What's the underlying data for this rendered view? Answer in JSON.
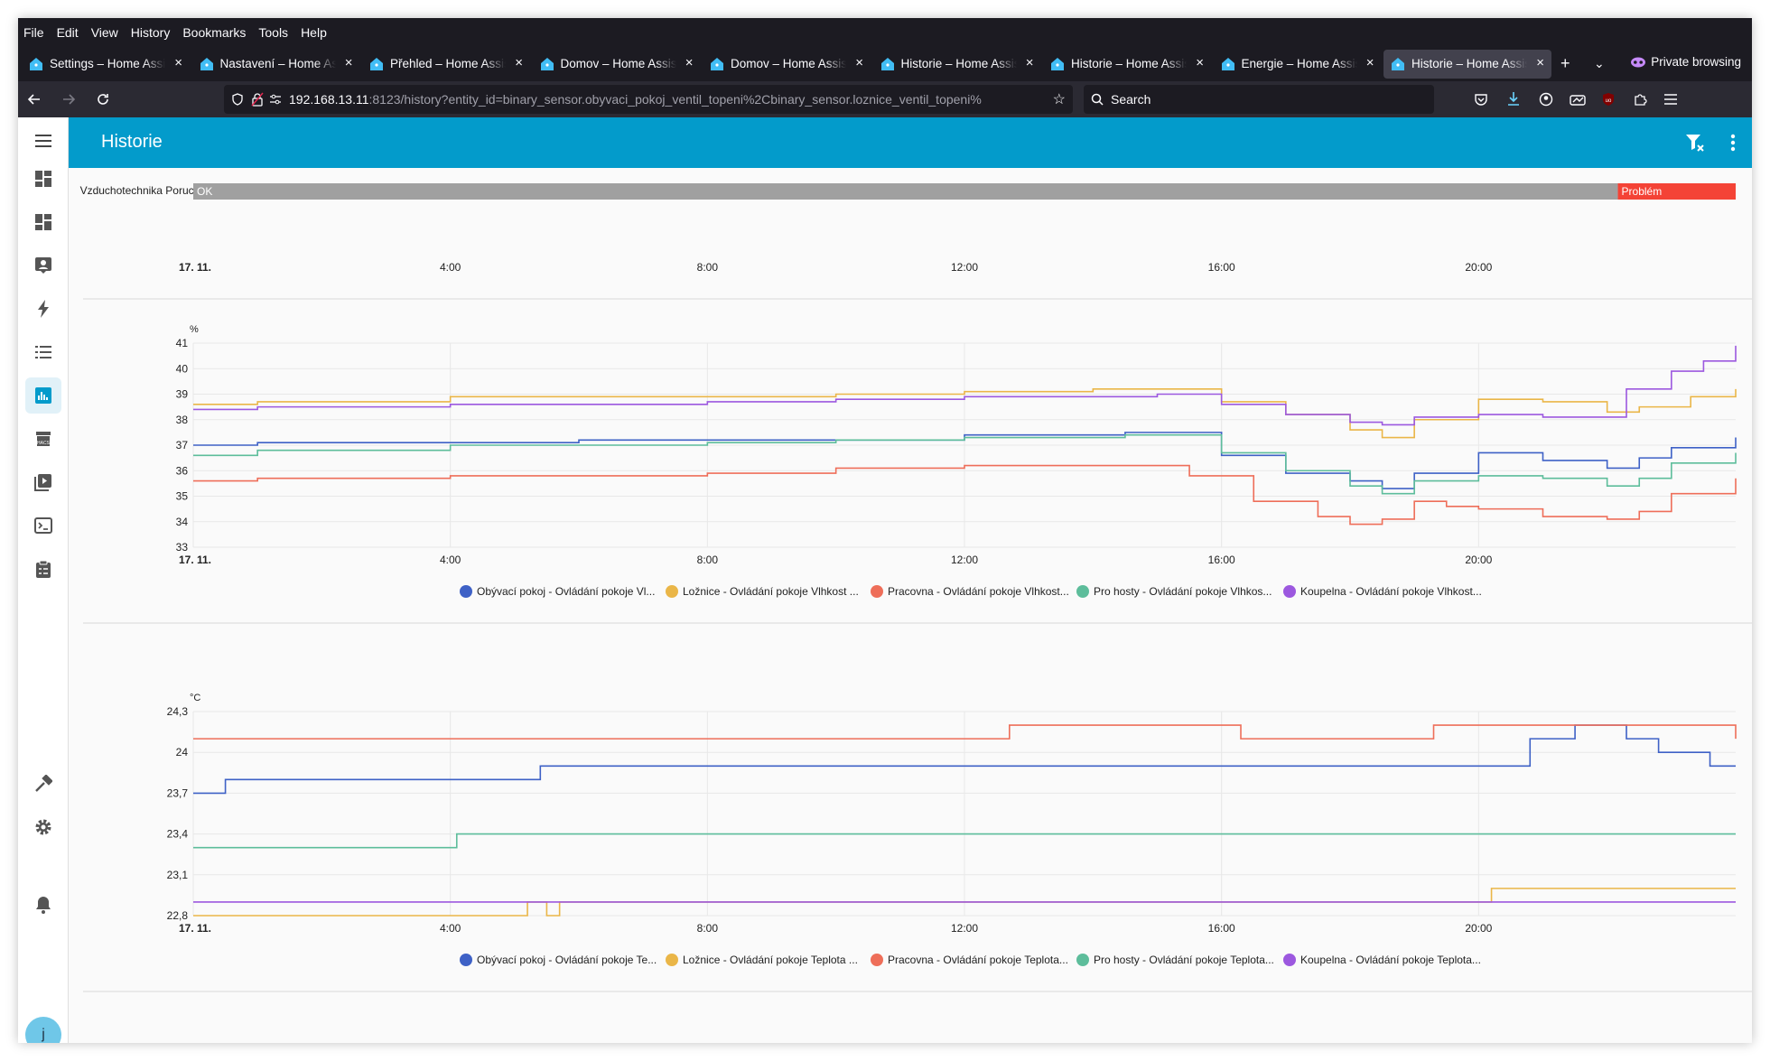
{
  "menubar": [
    "File",
    "Edit",
    "View",
    "History",
    "Bookmarks",
    "Tools",
    "Help"
  ],
  "tabs": [
    {
      "label": "Settings – Home Assistant",
      "active": false
    },
    {
      "label": "Nastavení – Home Assistant",
      "active": false
    },
    {
      "label": "Přehled – Home Assistant",
      "active": false
    },
    {
      "label": "Domov – Home Assistant",
      "active": false
    },
    {
      "label": "Domov – Home Assistant",
      "active": false
    },
    {
      "label": "Historie – Home Assistant",
      "active": false
    },
    {
      "label": "Historie – Home Assistant",
      "active": false
    },
    {
      "label": "Energie – Home Assistant",
      "active": false
    },
    {
      "label": "Historie – Home Assistant",
      "active": true
    }
  ],
  "private_label": "Private browsing",
  "url": {
    "host": "192.168.13.11",
    "rest": ":8123/history?entity_id=binary_sensor.obyvaci_pokoj_ventil_topeni%2Cbinary_sensor.loznice_ventil_topeni%"
  },
  "search_placeholder": "Search",
  "header": {
    "title": "Historie"
  },
  "avatar_letter": "j",
  "colors": {
    "blue": "#3e61c6",
    "yellow": "#eab648",
    "red": "#ee6e59",
    "green": "#5dbd9b",
    "purple": "#9c58df",
    "header": "#039bcb",
    "timeline_ok": "#a0a0a0",
    "timeline_problem": "#f44336"
  },
  "timeline": {
    "entity": "Vzduchotechnika Porucha",
    "segments": [
      {
        "label": "OK",
        "from": "00:00",
        "to": "22:10"
      },
      {
        "label": "Problém",
        "from": "22:10",
        "to": "24:00"
      }
    ]
  },
  "time_ticks": [
    {
      "t": 0,
      "label": "17. 11."
    },
    {
      "t": 4,
      "label": "4:00"
    },
    {
      "t": 8,
      "label": "8:00"
    },
    {
      "t": 12,
      "label": "12:00"
    },
    {
      "t": 16,
      "label": "16:00"
    },
    {
      "t": 20,
      "label": "20:00"
    }
  ],
  "chart_data": [
    {
      "type": "line",
      "unit": "%",
      "ylim": [
        33,
        41
      ],
      "yticks": [
        "33",
        "34",
        "35",
        "36",
        "37",
        "38",
        "39",
        "40",
        "41"
      ],
      "series": [
        {
          "name": "Obývací pokoj - Ovládání pokoje Vl...",
          "color": "blue",
          "points": [
            [
              0,
              37
            ],
            [
              1,
              37.1
            ],
            [
              3,
              37.1
            ],
            [
              6,
              37.2
            ],
            [
              10,
              37.2
            ],
            [
              12,
              37.4
            ],
            [
              14.5,
              37.5
            ],
            [
              16,
              36.6
            ],
            [
              17,
              35.9
            ],
            [
              18,
              35.6
            ],
            [
              18.5,
              35.3
            ],
            [
              19,
              35.9
            ],
            [
              20,
              36.7
            ],
            [
              21,
              36.4
            ],
            [
              22,
              36.1
            ],
            [
              22.5,
              36.5
            ],
            [
              23,
              36.9
            ],
            [
              24,
              37.3
            ]
          ]
        },
        {
          "name": "Ložnice - Ovládání pokoje Vlhkost ...",
          "color": "yellow",
          "points": [
            [
              0,
              38.6
            ],
            [
              1,
              38.7
            ],
            [
              4,
              38.9
            ],
            [
              8,
              38.9
            ],
            [
              10,
              39
            ],
            [
              12,
              39.1
            ],
            [
              14,
              39.2
            ],
            [
              15,
              39.2
            ],
            [
              16,
              38.7
            ],
            [
              17,
              38.2
            ],
            [
              18,
              37.6
            ],
            [
              18.5,
              37.3
            ],
            [
              19,
              38
            ],
            [
              20,
              38.8
            ],
            [
              21,
              38.7
            ],
            [
              22,
              38.3
            ],
            [
              22.5,
              38.5
            ],
            [
              23.3,
              38.9
            ],
            [
              24,
              39.2
            ]
          ]
        },
        {
          "name": "Pracovna - Ovládání pokoje Vlhkost...",
          "color": "red",
          "points": [
            [
              0,
              35.6
            ],
            [
              1,
              35.7
            ],
            [
              4,
              35.8
            ],
            [
              8,
              35.9
            ],
            [
              10,
              36.1
            ],
            [
              12,
              36.2
            ],
            [
              14,
              36.2
            ],
            [
              15.5,
              35.8
            ],
            [
              16.5,
              34.8
            ],
            [
              17.5,
              34.2
            ],
            [
              18,
              33.9
            ],
            [
              18.5,
              34.1
            ],
            [
              19,
              34.8
            ],
            [
              19.5,
              34.6
            ],
            [
              20,
              34.5
            ],
            [
              21,
              34.2
            ],
            [
              22,
              34.1
            ],
            [
              22.5,
              34.4
            ],
            [
              23,
              35.1
            ],
            [
              24,
              35.7
            ]
          ]
        },
        {
          "name": "Pro hosty - Ovládání pokoje Vlhkos...",
          "color": "green",
          "points": [
            [
              0,
              36.6
            ],
            [
              1,
              36.8
            ],
            [
              4,
              37
            ],
            [
              8,
              37.1
            ],
            [
              10,
              37.2
            ],
            [
              12,
              37.3
            ],
            [
              14.5,
              37.4
            ],
            [
              16,
              36.7
            ],
            [
              17,
              36
            ],
            [
              18,
              35.4
            ],
            [
              18.5,
              35.1
            ],
            [
              19,
              35.6
            ],
            [
              20,
              35.8
            ],
            [
              21,
              35.7
            ],
            [
              22,
              35.4
            ],
            [
              22.5,
              35.7
            ],
            [
              23,
              36.3
            ],
            [
              24,
              36.7
            ]
          ]
        },
        {
          "name": "Koupelna - Ovládání pokoje Vlhkost...",
          "color": "purple",
          "points": [
            [
              0,
              38.4
            ],
            [
              1,
              38.5
            ],
            [
              4,
              38.6
            ],
            [
              8,
              38.7
            ],
            [
              10,
              38.8
            ],
            [
              12,
              38.9
            ],
            [
              15,
              39
            ],
            [
              16,
              38.6
            ],
            [
              17,
              38.2
            ],
            [
              18,
              37.9
            ],
            [
              18.5,
              37.8
            ],
            [
              19,
              38.1
            ],
            [
              20,
              38.2
            ],
            [
              21,
              38.1
            ],
            [
              22,
              38.1
            ],
            [
              22.3,
              39.2
            ],
            [
              23,
              39.9
            ],
            [
              23.5,
              40.3
            ],
            [
              24,
              40.9
            ]
          ]
        }
      ]
    },
    {
      "type": "line",
      "unit": "°C",
      "ylim": [
        22.8,
        24.3
      ],
      "yticks": [
        "22,8",
        "23,1",
        "23,4",
        "23,7",
        "24",
        "24,3"
      ],
      "series": [
        {
          "name": "Obývací pokoj - Ovládání pokoje Te...",
          "color": "blue",
          "points": [
            [
              0,
              23.7
            ],
            [
              0.5,
              23.8
            ],
            [
              4,
              23.8
            ],
            [
              5.4,
              23.9
            ],
            [
              16,
              23.9
            ],
            [
              20,
              23.9
            ],
            [
              20.8,
              24.1
            ],
            [
              21.5,
              24.2
            ],
            [
              22.3,
              24.1
            ],
            [
              22.8,
              24
            ],
            [
              23.6,
              23.9
            ],
            [
              24,
              23.9
            ]
          ]
        },
        {
          "name": "Ložnice - Ovládání pokoje Teplota ...",
          "color": "yellow",
          "points": [
            [
              0,
              22.8
            ],
            [
              4,
              22.8
            ],
            [
              5.2,
              22.9
            ],
            [
              5.5,
              22.8
            ],
            [
              5.7,
              22.9
            ],
            [
              10,
              22.9
            ],
            [
              20,
              22.9
            ],
            [
              20.2,
              23
            ],
            [
              24,
              23
            ]
          ]
        },
        {
          "name": "Pracovna - Ovládání pokoje Teplota...",
          "color": "red",
          "points": [
            [
              0,
              24.1
            ],
            [
              12.7,
              24.2
            ],
            [
              16,
              24.2
            ],
            [
              16.3,
              24.1
            ],
            [
              19,
              24.1
            ],
            [
              19.3,
              24.2
            ],
            [
              24,
              24.2
            ],
            [
              24,
              24.1
            ]
          ]
        },
        {
          "name": "Pro hosty - Ovládání pokoje Teplota...",
          "color": "green",
          "points": [
            [
              0,
              23.3
            ],
            [
              4,
              23.3
            ],
            [
              4.1,
              23.4
            ],
            [
              24,
              23.4
            ]
          ]
        },
        {
          "name": "Koupelna - Ovládání pokoje Teplota...",
          "color": "purple",
          "points": [
            [
              0,
              22.9
            ],
            [
              24,
              22.9
            ]
          ]
        }
      ]
    }
  ]
}
